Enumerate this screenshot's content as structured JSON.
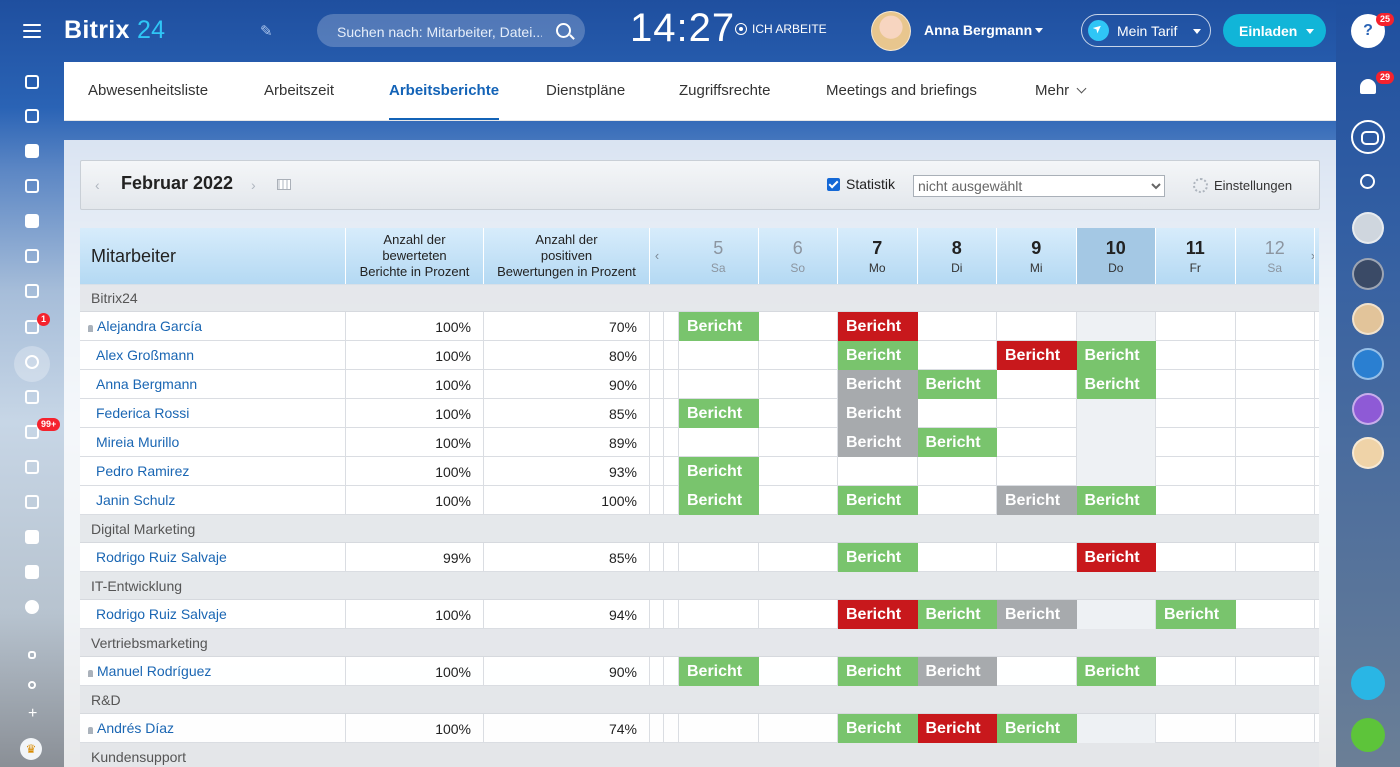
{
  "app": {
    "logo_text": "Bitrix",
    "logo_num": "24"
  },
  "header": {
    "search_placeholder": "Suchen nach: Mitarbeiter, Datei...",
    "clock": "14:27",
    "work_status": "ICH ARBEITE",
    "user_name": "Anna Bergmann",
    "tarif_label": "Mein Tarif",
    "invite_label": "Einladen"
  },
  "left_badges": {
    "tasks": "1",
    "feed": "99+"
  },
  "right_badges": {
    "help": "25",
    "notifications": "29"
  },
  "tabs": [
    {
      "label": "Abwesenheitsliste",
      "active": false
    },
    {
      "label": "Arbeitszeit",
      "active": false
    },
    {
      "label": "Arbeitsberichte",
      "active": true
    },
    {
      "label": "Dienstpläne",
      "active": false
    },
    {
      "label": "Zugriffsrechte",
      "active": false
    },
    {
      "label": "Meetings and briefings",
      "active": false
    },
    {
      "label": "Mehr",
      "active": false
    }
  ],
  "toolbar": {
    "month": "Februar 2022",
    "statistics_label": "Statistik",
    "filter_value": "nicht ausgewählt",
    "settings_label": "Einstellungen"
  },
  "table": {
    "employee_header": "Mitarbeiter",
    "stat1_header": [
      "Anzahl der",
      "bewerteten",
      "Berichte in Prozent"
    ],
    "stat2_header": [
      "Anzahl der",
      "positiven",
      "Bewertungen in Prozent"
    ],
    "days": [
      {
        "num": "5",
        "wd": "Sa",
        "weekend": true,
        "today": false
      },
      {
        "num": "6",
        "wd": "So",
        "weekend": true,
        "today": false
      },
      {
        "num": "7",
        "wd": "Mo",
        "weekend": false,
        "today": false
      },
      {
        "num": "8",
        "wd": "Di",
        "weekend": false,
        "today": false
      },
      {
        "num": "9",
        "wd": "Mi",
        "weekend": false,
        "today": false
      },
      {
        "num": "10",
        "wd": "Do",
        "weekend": false,
        "today": true
      },
      {
        "num": "11",
        "wd": "Fr",
        "weekend": false,
        "today": false
      },
      {
        "num": "12",
        "wd": "Sa",
        "weekend": true,
        "today": false
      }
    ],
    "report_label": "Bericht",
    "rows": [
      {
        "type": "group",
        "label": "Bitrix24"
      },
      {
        "type": "emp",
        "name": "Alejandra García",
        "head": true,
        "s1": "100%",
        "s2": "70%",
        "reports": [
          "ok",
          null,
          "bad",
          null,
          null,
          null,
          null,
          null
        ]
      },
      {
        "type": "emp",
        "name": "Alex Großmann",
        "head": false,
        "s1": "100%",
        "s2": "80%",
        "reports": [
          null,
          null,
          "ok",
          null,
          "bad",
          "ok",
          null,
          null
        ]
      },
      {
        "type": "emp",
        "name": "Anna Bergmann",
        "head": false,
        "s1": "100%",
        "s2": "90%",
        "reports": [
          null,
          null,
          "none",
          "ok",
          null,
          "ok",
          null,
          null
        ]
      },
      {
        "type": "emp",
        "name": "Federica Rossi",
        "head": false,
        "s1": "100%",
        "s2": "85%",
        "reports": [
          "ok",
          null,
          "none",
          null,
          null,
          null,
          null,
          null
        ]
      },
      {
        "type": "emp",
        "name": "Mireia Murillo",
        "head": false,
        "s1": "100%",
        "s2": "89%",
        "reports": [
          null,
          null,
          "none",
          "ok",
          null,
          null,
          null,
          null
        ]
      },
      {
        "type": "emp",
        "name": "Pedro Ramirez",
        "head": false,
        "s1": "100%",
        "s2": "93%",
        "reports": [
          "ok",
          null,
          null,
          null,
          null,
          null,
          null,
          null
        ]
      },
      {
        "type": "emp",
        "name": "Janin Schulz",
        "head": false,
        "s1": "100%",
        "s2": "100%",
        "reports": [
          "ok",
          null,
          "ok",
          null,
          "none",
          "ok",
          null,
          null
        ]
      },
      {
        "type": "group",
        "label": "Digital Marketing"
      },
      {
        "type": "emp",
        "name": "Rodrigo Ruiz Salvaje",
        "head": false,
        "s1": "99%",
        "s2": "85%",
        "reports": [
          null,
          null,
          "ok",
          null,
          null,
          "bad",
          null,
          null
        ]
      },
      {
        "type": "group",
        "label": "IT-Entwicklung"
      },
      {
        "type": "emp",
        "name": "Rodrigo Ruiz Salvaje",
        "head": false,
        "s1": "100%",
        "s2": "94%",
        "reports": [
          null,
          null,
          "bad",
          "ok",
          "none",
          null,
          "ok",
          null
        ]
      },
      {
        "type": "group",
        "label": "Vertriebsmarketing"
      },
      {
        "type": "emp",
        "name": "Manuel Rodríguez",
        "head": true,
        "s1": "100%",
        "s2": "90%",
        "reports": [
          "ok",
          null,
          "ok",
          "none",
          null,
          "ok",
          null,
          null
        ]
      },
      {
        "type": "group",
        "label": "R&D"
      },
      {
        "type": "emp",
        "name": "Andrés Díaz",
        "head": true,
        "s1": "100%",
        "s2": "74%",
        "reports": [
          null,
          null,
          "ok",
          "bad",
          "ok",
          null,
          null,
          null
        ]
      },
      {
        "type": "group",
        "label": "Kundensupport"
      }
    ]
  },
  "colors": {
    "ok": "#79c46d",
    "bad": "#c8181c",
    "none": "#a7aaad",
    "accent": "#1363b7",
    "invite": "#11b5d8"
  }
}
